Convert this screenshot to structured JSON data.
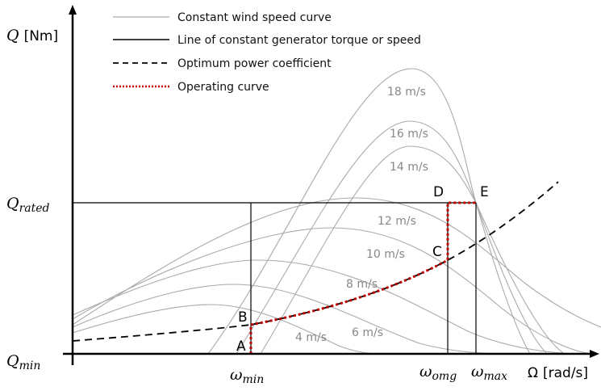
{
  "legend": [
    {
      "label": "Constant wind speed curve",
      "style": "solid",
      "color": "#aaaaaa"
    },
    {
      "label": "Line of constant generator torque or speed",
      "style": "solid",
      "color": "#000000"
    },
    {
      "label": "Optimum power coefficient",
      "style": "dashed",
      "color": "#000000"
    },
    {
      "label": "Operating curve",
      "style": "dotted",
      "color": "#c00000"
    }
  ],
  "axes": {
    "y_label": "Q",
    "y_unit": "[Nm]",
    "x_label": "Ω",
    "x_unit": "[rad/s]",
    "q_rated": {
      "base": "Q",
      "sub": "rated"
    },
    "q_min": {
      "base": "Q",
      "sub": "min"
    },
    "w_min": {
      "base": "ω",
      "sub": "min"
    },
    "w_omg": {
      "base": "ω",
      "sub": "omg"
    },
    "w_max": {
      "base": "ω",
      "sub": "max"
    }
  },
  "wind_speeds": [
    "18 m/s",
    "16 m/s",
    "14 m/s",
    "12 m/s",
    "10 m/s",
    "8 m/s",
    "6 m/s",
    "4 m/s"
  ],
  "points": [
    "A",
    "B",
    "C",
    "D",
    "E"
  ]
}
